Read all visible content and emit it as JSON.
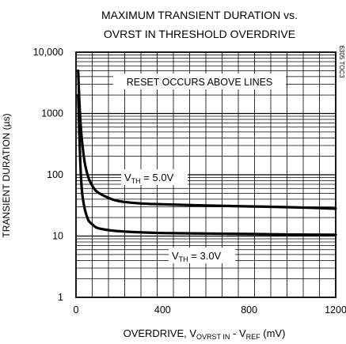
{
  "chart_data": {
    "type": "line",
    "title": "MAXIMUM TRANSIENT DURATION vs.",
    "subtitle": "OVRST IN THRESHOLD OVERDRIVE",
    "side_code": "6305 TOC3",
    "xlabel": {
      "prefix": "OVERDRIVE, V",
      "sub1": "OVRST IN",
      "middle": " - V",
      "sub2": "REF",
      "suffix": " (mV)"
    },
    "ylabel": "TRANSIENT DURATION (µs)",
    "x_scale": "linear",
    "y_scale": "log",
    "xlim": [
      0,
      1200
    ],
    "ylim": [
      1,
      10000
    ],
    "x_ticks": [
      0,
      400,
      800,
      1200
    ],
    "x_tick_labels": [
      "0",
      "400",
      "800",
      "1200"
    ],
    "y_ticks": [
      1,
      10,
      100,
      1000,
      10000
    ],
    "y_tick_labels": [
      "1",
      "10",
      "100",
      "1000",
      "10,000"
    ],
    "grid": true,
    "annotation": "RESET OCCURS ABOVE LINES",
    "series": [
      {
        "label": {
          "main": "V",
          "sub": "TH",
          "value": " = 5.0V"
        },
        "x": [
          10,
          15,
          20,
          25,
          30,
          40,
          50,
          60,
          80,
          100,
          150,
          200,
          300,
          400,
          600,
          800,
          1000,
          1200
        ],
        "y": [
          5000,
          1700,
          800,
          450,
          300,
          160,
          110,
          85,
          62,
          52,
          42,
          37,
          34,
          33,
          31.5,
          30.5,
          29.5,
          28
        ]
      },
      {
        "label": {
          "main": "V",
          "sub": "TH",
          "value": " = 3.0V"
        },
        "x": [
          10,
          15,
          20,
          25,
          30,
          40,
          50,
          60,
          80,
          100,
          150,
          200,
          300,
          400,
          600,
          800,
          1000,
          1200
        ],
        "y": [
          2000,
          500,
          150,
          70,
          45,
          28,
          21,
          17.5,
          15,
          13.5,
          12.5,
          12,
          11.5,
          11.2,
          11,
          10.8,
          10.6,
          10.5
        ]
      }
    ]
  }
}
